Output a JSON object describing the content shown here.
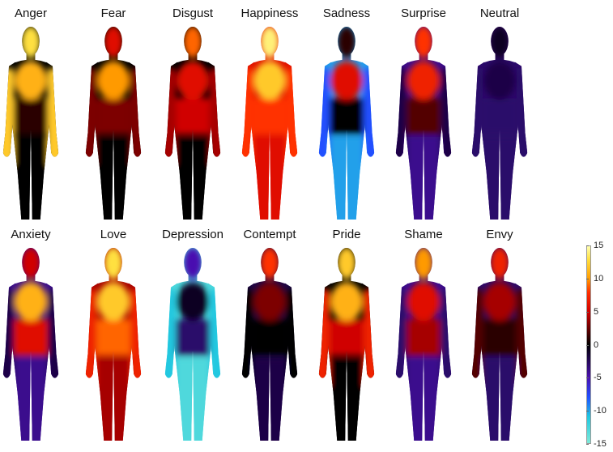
{
  "regions": [
    "head",
    "chest",
    "belly",
    "arms",
    "legs"
  ],
  "emotions": [
    {
      "label": "Anger",
      "activation": {
        "head": 13,
        "chest": 11,
        "belly": 1,
        "arms": 12,
        "legs": 0
      }
    },
    {
      "label": "Fear",
      "activation": {
        "head": 6,
        "chest": 10,
        "belly": 3,
        "arms": 3,
        "legs": 0
      }
    },
    {
      "label": "Disgust",
      "activation": {
        "head": 9,
        "chest": 6,
        "belly": 5,
        "arms": 4,
        "legs": 0
      }
    },
    {
      "label": "Happiness",
      "activation": {
        "head": 14,
        "chest": 12,
        "belly": 8,
        "arms": 8,
        "legs": 6
      }
    },
    {
      "label": "Sadness",
      "activation": {
        "head": 1,
        "chest": 6,
        "belly": 0,
        "arms": -8,
        "legs": -10
      }
    },
    {
      "label": "Surprise",
      "activation": {
        "head": 8,
        "chest": 7,
        "belly": 2,
        "arms": -2,
        "legs": -4
      }
    },
    {
      "label": "Neutral",
      "activation": {
        "head": -1,
        "chest": -2,
        "belly": -3,
        "arms": -3,
        "legs": -3
      }
    },
    {
      "label": "Anxiety",
      "activation": {
        "head": 5,
        "chest": 11,
        "belly": 6,
        "arms": -2,
        "legs": -4
      }
    },
    {
      "label": "Love",
      "activation": {
        "head": 13,
        "chest": 12,
        "belly": 9,
        "arms": 7,
        "legs": 4
      }
    },
    {
      "label": "Depression",
      "activation": {
        "head": -5,
        "chest": -1,
        "belly": -3,
        "arms": -11,
        "legs": -13
      }
    },
    {
      "label": "Contempt",
      "activation": {
        "head": 8,
        "chest": 3,
        "belly": 0,
        "arms": 0,
        "legs": -2
      }
    },
    {
      "label": "Pride",
      "activation": {
        "head": 12,
        "chest": 11,
        "belly": 5,
        "arms": 7,
        "legs": 0
      }
    },
    {
      "label": "Shame",
      "activation": {
        "head": 10,
        "chest": 6,
        "belly": 4,
        "arms": -3,
        "legs": -4
      }
    },
    {
      "label": "Envy",
      "activation": {
        "head": 7,
        "chest": 4,
        "belly": 1,
        "arms": 2,
        "legs": -3
      }
    }
  ],
  "colorbar": {
    "range": [
      -15,
      15
    ],
    "ticks": [
      "15",
      "10",
      "5",
      "0",
      "-5",
      "-10",
      "-15"
    ],
    "colormap": [
      {
        "value": -15,
        "color": "#7fe8d8"
      },
      {
        "value": -11,
        "color": "#20c8e0"
      },
      {
        "value": -8,
        "color": "#2050ff"
      },
      {
        "value": -5,
        "color": "#4a10b0"
      },
      {
        "value": 0,
        "color": "#000000"
      },
      {
        "value": 5,
        "color": "#d00000"
      },
      {
        "value": 8,
        "color": "#ff3000"
      },
      {
        "value": 10,
        "color": "#ff9a00"
      },
      {
        "value": 13,
        "color": "#ffe040"
      },
      {
        "value": 15,
        "color": "#ffffb0"
      }
    ]
  }
}
